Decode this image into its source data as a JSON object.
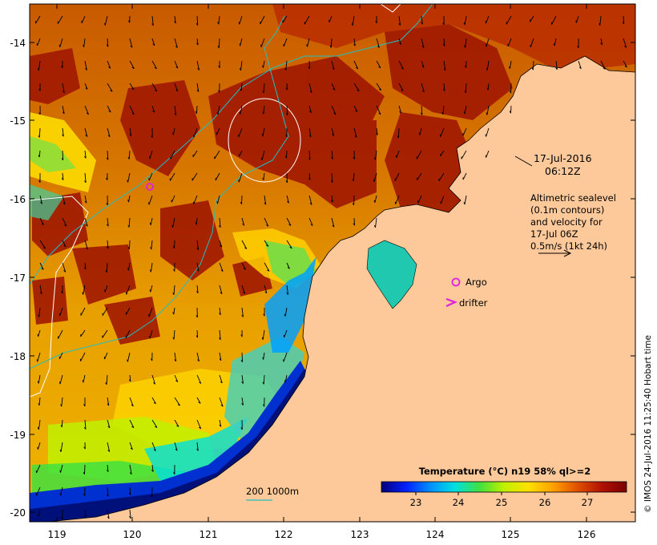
{
  "datetime_label": {
    "line1": "17-Jul-2016",
    "line2": "06:12Z"
  },
  "annotation": {
    "line1": "Altimetric sealevel",
    "line2": "(0.1m contours)",
    "line3": "and velocity for",
    "line4": "17-Jul 06Z",
    "line5": "0.5m/s (1kt 24h)"
  },
  "markers": {
    "argo_label": "Argo",
    "drifter_label": "drifter",
    "argo_color": "#e020e0",
    "drifter_color": "#e020e0"
  },
  "bathymetry_label": "200  1000m",
  "bathymetry_color": "#20c0c0",
  "axes": {
    "x_ticks": [
      "119",
      "120",
      "121",
      "122",
      "123",
      "124",
      "125",
      "126"
    ],
    "y_ticks": [
      "-14",
      "-15",
      "-16",
      "-17",
      "-18",
      "-19",
      "-20"
    ]
  },
  "legend": {
    "title": "Temperature (°C) n19 58% ql>=2",
    "ticks": [
      "23",
      "24",
      "25",
      "26",
      "27"
    ],
    "colors": [
      "#00007a",
      "#0020ff",
      "#0090ff",
      "#00e0e0",
      "#40e040",
      "#c0f000",
      "#ffe000",
      "#ffa000",
      "#e05000",
      "#b01000",
      "#7a0000"
    ]
  },
  "credit": "© IMOS 24-Jul-2016 11:25:40 Hobart time",
  "colors": {
    "land": "#fdc99a",
    "frame": "#000000"
  }
}
